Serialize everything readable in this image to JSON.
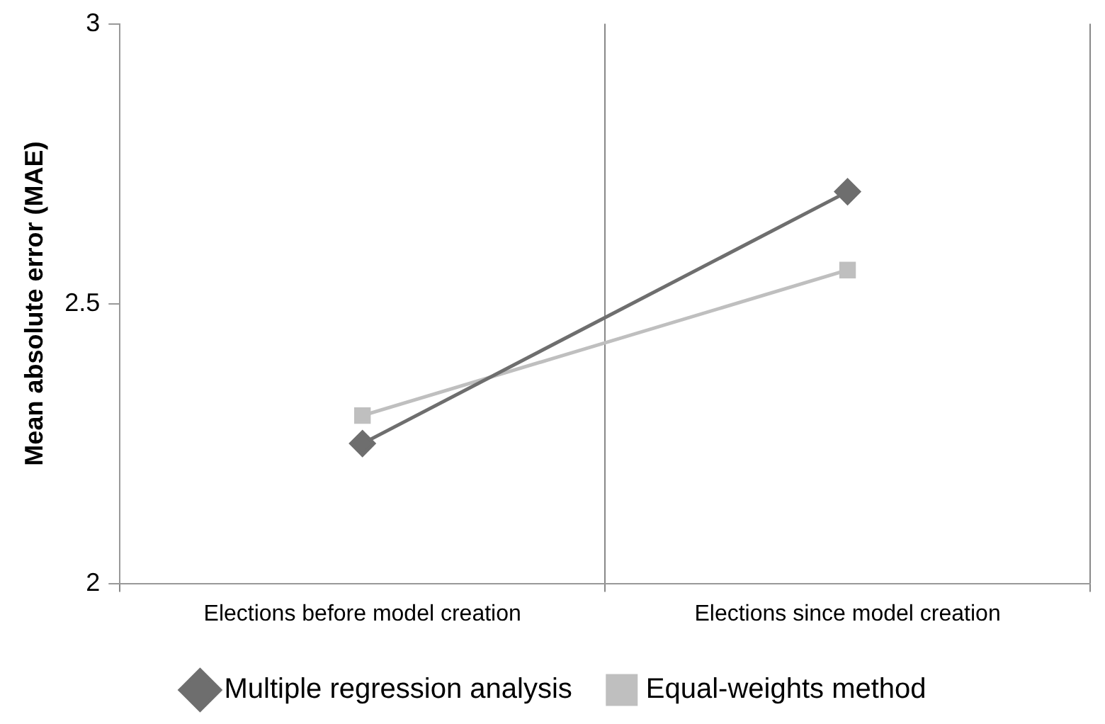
{
  "chart_data": {
    "type": "line",
    "ylabel": "Mean absolute error (MAE)",
    "categories": [
      "Elections before model creation",
      "Elections since model creation"
    ],
    "series": [
      {
        "name": "Multiple regression analysis",
        "color": "#6e6e6e",
        "marker": "diamond",
        "values": [
          2.25,
          2.7
        ]
      },
      {
        "name": "Equal-weights method",
        "color": "#bfbfbf",
        "marker": "square",
        "values": [
          2.3,
          2.56
        ]
      }
    ],
    "ylim": [
      2,
      3
    ],
    "yticks": [
      2,
      2.5,
      3
    ],
    "grid": "x",
    "legend": "bottom",
    "line_style": "solid"
  }
}
